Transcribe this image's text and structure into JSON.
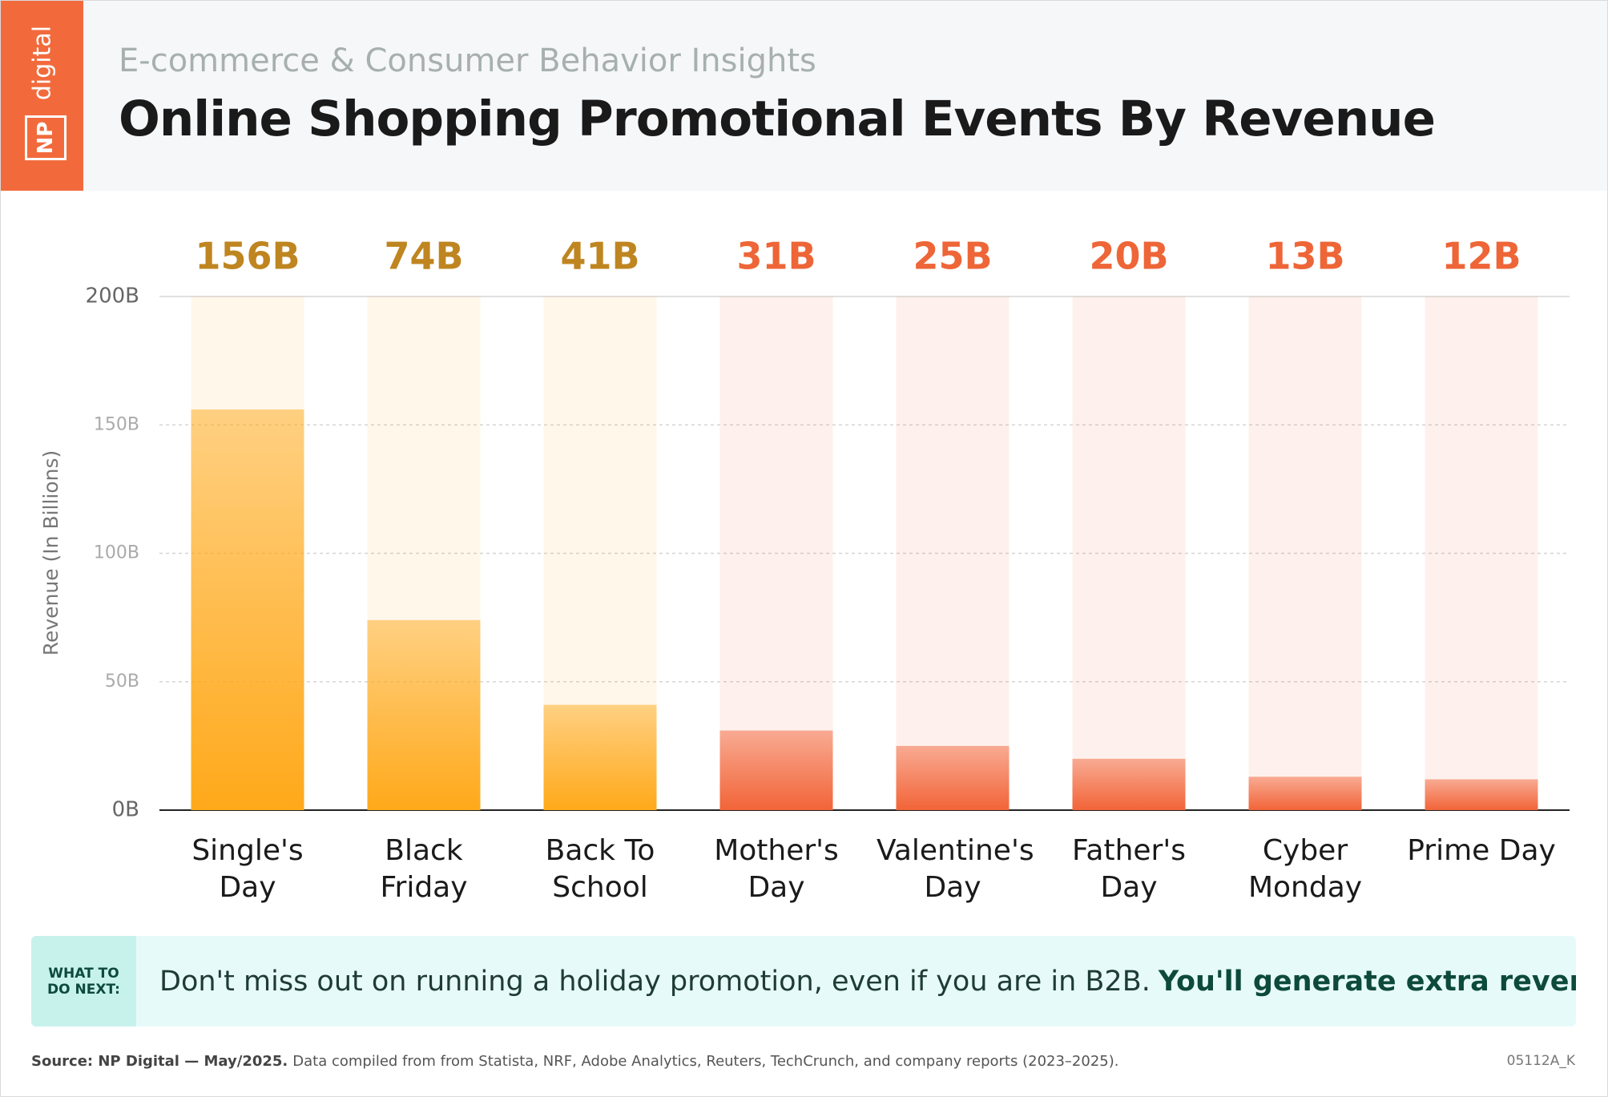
{
  "header": {
    "logo_np": "NP",
    "logo_digital": "digital",
    "subtitle": "E-commerce & Consumer Behavior Insights",
    "title": "Online Shopping Promotional Events By Revenue"
  },
  "chart_data": {
    "type": "bar",
    "y_label": "Revenue (In Billions)",
    "categories": [
      "Single's Day",
      "Black Friday",
      "Back To School",
      "Mother's Day",
      "Valentine's Day",
      "Father's Day",
      "Cyber Monday",
      "Prime Day"
    ],
    "values": [
      156,
      74,
      41,
      31,
      25,
      20,
      13,
      12
    ],
    "value_labels": [
      "156B",
      "74B",
      "41B",
      "31B",
      "25B",
      "20B",
      "13B",
      "12B"
    ],
    "colors": [
      "#ffa91a",
      "#ffa91a",
      "#ffa91a",
      "#f26438",
      "#f26438",
      "#f26438",
      "#f26438",
      "#f26438"
    ],
    "label_colors": [
      "#bf8520",
      "#bf8520",
      "#bf8520",
      "#ee6537",
      "#ee6537",
      "#ee6537",
      "#ee6537",
      "#ee6537"
    ],
    "ylim": [
      0,
      200
    ],
    "yticks": [
      {
        "value": 0,
        "label": "0B"
      },
      {
        "value": 50,
        "label": "50B"
      },
      {
        "value": 100,
        "label": "100B"
      },
      {
        "value": 150,
        "label": "150B"
      },
      {
        "value": 200,
        "label": "200B"
      }
    ],
    "grid": true
  },
  "callout": {
    "tag": "WHAT TO DO NEXT:",
    "text": "Don't miss out on running a holiday promotion, even if you are in B2B.",
    "emphasis": "You'll generate extra revenue."
  },
  "footer": {
    "source": "Source: NP Digital — May/2025.",
    "details": "Data compiled from from Statista, NRF, Adobe Analytics, Reuters, TechCrunch, and company reports (2023–2025).",
    "code": "05112A_K"
  }
}
